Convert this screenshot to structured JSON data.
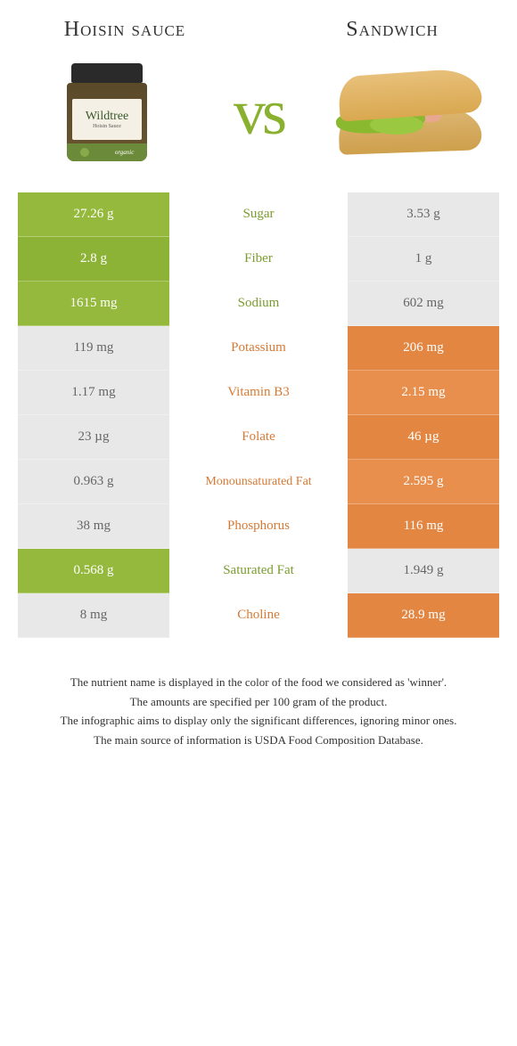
{
  "left_food": {
    "title": "Hoisin sauce"
  },
  "right_food": {
    "title": "Sandwich"
  },
  "vs_label": "vs",
  "colors": {
    "green": "#94b93c",
    "green_alt": "#8cb236",
    "orange": "#e78f4e",
    "orange_text": "#d67a35",
    "green_text": "#7a9c2e",
    "neutral_bg": "#e8e8e8",
    "neutral_text": "#666666"
  },
  "rows": [
    {
      "label": "Sugar",
      "left": "27.26 g",
      "right": "3.53 g",
      "winner": "left"
    },
    {
      "label": "Fiber",
      "left": "2.8 g",
      "right": "1 g",
      "winner": "left"
    },
    {
      "label": "Sodium",
      "left": "1615 mg",
      "right": "602 mg",
      "winner": "left"
    },
    {
      "label": "Potassium",
      "left": "119 mg",
      "right": "206 mg",
      "winner": "right"
    },
    {
      "label": "Vitamin B3",
      "left": "1.17 mg",
      "right": "2.15 mg",
      "winner": "right"
    },
    {
      "label": "Folate",
      "left": "23 µg",
      "right": "46 µg",
      "winner": "right"
    },
    {
      "label": "Monounsaturated Fat",
      "left": "0.963 g",
      "right": "2.595 g",
      "winner": "right"
    },
    {
      "label": "Phosphorus",
      "left": "38 mg",
      "right": "116 mg",
      "winner": "right"
    },
    {
      "label": "Saturated Fat",
      "left": "0.568 g",
      "right": "1.949 g",
      "winner": "left"
    },
    {
      "label": "Choline",
      "left": "8 mg",
      "right": "28.9 mg",
      "winner": "right"
    }
  ],
  "footnotes": [
    "The nutrient name is displayed in the color of the food we considered as 'winner'.",
    "The amounts are specified per 100 gram of the product.",
    "The infographic aims to display only the significant differences, ignoring minor ones.",
    "The main source of information is USDA Food Composition Database."
  ]
}
